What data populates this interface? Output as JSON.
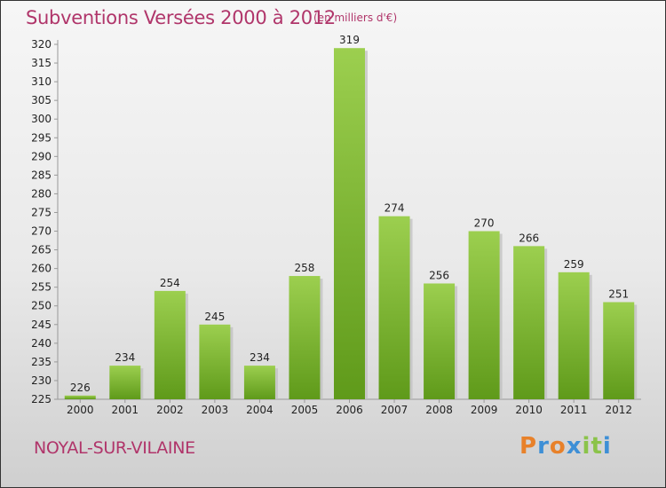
{
  "title": "Subventions Versées 2000 à 2012",
  "subtitle": "(en milliers d'€)",
  "commune": "NOYAL-SUR-VILAINE",
  "logo": {
    "letters": [
      "P",
      "r",
      "o",
      "x",
      "i",
      "t",
      "i"
    ],
    "colors": [
      "#e8812a",
      "#3e8fd6",
      "#e8812a",
      "#3e8fd6",
      "#8bc34a",
      "#8bc34a",
      "#3e8fd6"
    ]
  },
  "chart_data": {
    "type": "bar",
    "title": "Subventions Versées 2000 à 2012",
    "subtitle": "(en milliers d'€)",
    "categories": [
      "2000",
      "2001",
      "2002",
      "2003",
      "2004",
      "2005",
      "2006",
      "2007",
      "2008",
      "2009",
      "2010",
      "2011",
      "2012"
    ],
    "values": [
      226,
      234,
      254,
      245,
      234,
      258,
      319,
      274,
      256,
      270,
      266,
      259,
      251
    ],
    "ylim": [
      225,
      320
    ],
    "yticks": [
      225,
      230,
      235,
      240,
      245,
      250,
      255,
      260,
      265,
      270,
      275,
      280,
      285,
      290,
      295,
      300,
      305,
      310,
      315,
      320
    ],
    "grid": false,
    "bar_color": "#7fc13a"
  }
}
